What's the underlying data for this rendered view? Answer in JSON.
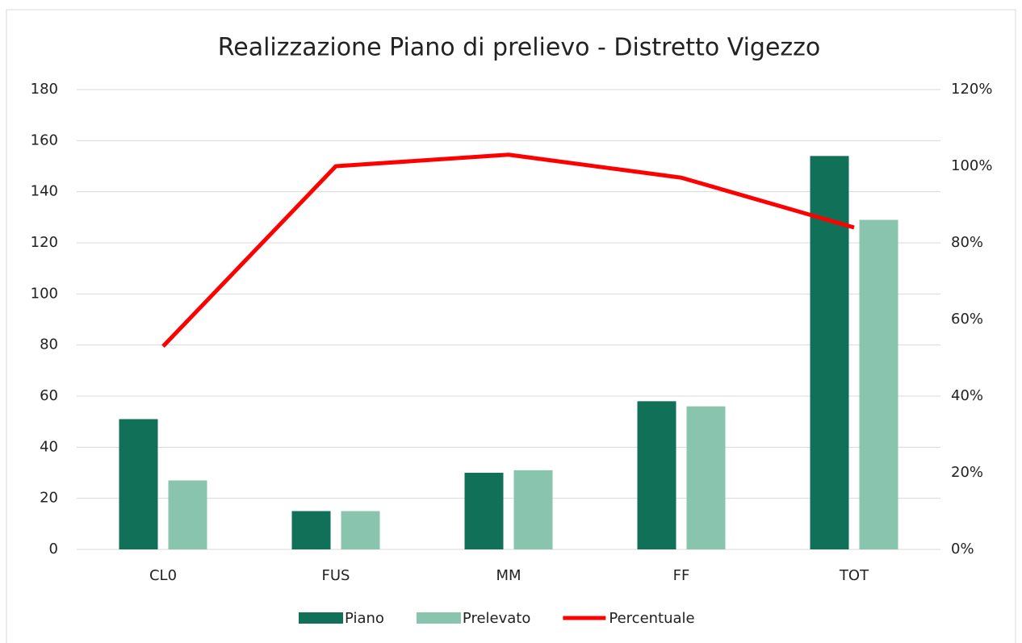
{
  "chart_data": {
    "type": "bar",
    "title": "Realizzazione Piano di prelievo - Distretto Vigezzo",
    "categories": [
      "CL0",
      "FUS",
      "MM",
      "FF",
      "TOT"
    ],
    "series": [
      {
        "name": "Piano",
        "color": "#107058",
        "values": [
          51,
          15,
          30,
          58,
          154
        ]
      },
      {
        "name": "Prelevato",
        "color": "#88c4ae",
        "values": [
          27,
          15,
          31,
          56,
          129
        ]
      },
      {
        "name": "Percentuale",
        "color": "#ff0000",
        "type": "line",
        "axis": "y2",
        "values": [
          53,
          100,
          103,
          97,
          84
        ]
      }
    ],
    "ylim": [
      0,
      180
    ],
    "yticks": [
      0,
      20,
      40,
      60,
      80,
      100,
      120,
      140,
      160,
      180
    ],
    "y2lim": [
      0,
      120
    ],
    "y2ticks": [
      {
        "value": 0,
        "label": "0%"
      },
      {
        "value": 20,
        "label": "20%"
      },
      {
        "value": 40,
        "label": "40%"
      },
      {
        "value": 60,
        "label": "60%"
      },
      {
        "value": 80,
        "label": "80%"
      },
      {
        "value": 100,
        "label": "100%"
      },
      {
        "value": 120,
        "label": "120%"
      }
    ],
    "grid": true,
    "legend": "bottom"
  }
}
